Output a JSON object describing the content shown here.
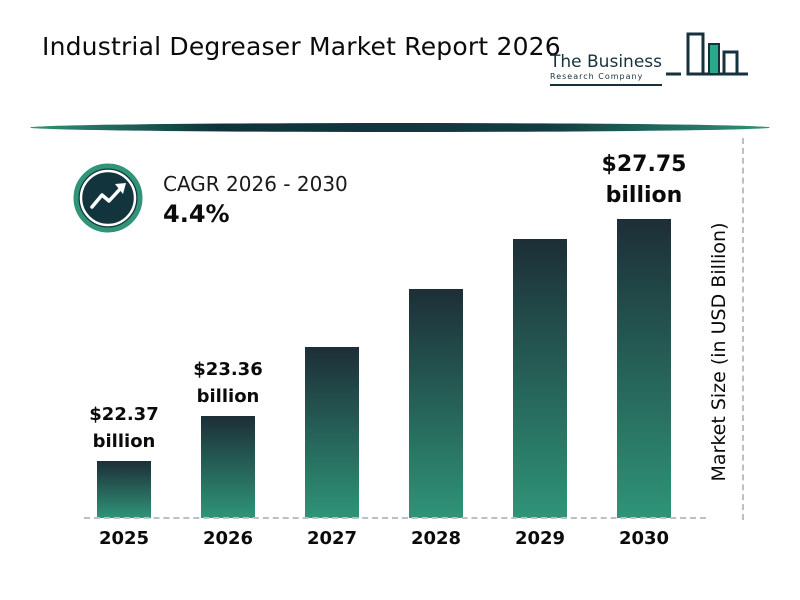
{
  "header": {
    "title": "Industrial Degreaser Market Report 2026",
    "logo": {
      "line1": "The Business",
      "line2": "Research Company"
    }
  },
  "cagr": {
    "label": "CAGR 2026 - 2030",
    "value": "4.4%"
  },
  "chart_data": {
    "type": "bar",
    "title": "Industrial Degreaser Market Report 2026",
    "categories": [
      "2025",
      "2026",
      "2027",
      "2028",
      "2029",
      "2030"
    ],
    "values": [
      22.37,
      23.36,
      24.9,
      26.2,
      27.3,
      27.75
    ],
    "values_estimated": [
      false,
      false,
      true,
      true,
      true,
      false
    ],
    "data_labels": [
      {
        "value": "$22.37",
        "unit": "billion",
        "size": "normal"
      },
      {
        "value": "$23.36",
        "unit": "billion",
        "size": "normal"
      },
      null,
      null,
      null,
      {
        "value": "$27.75",
        "unit": "billion",
        "size": "large"
      }
    ],
    "xlabel": "",
    "ylabel": "Market Size (in USD Billion)",
    "ylim": [
      21.1,
      28.2
    ],
    "grid": false,
    "legend": false,
    "bar_gradient_top": "#1d2e37",
    "bar_gradient_bottom": "#2f9478"
  },
  "colors": {
    "accent_teal": "#2f9478",
    "dark_teal": "#12343c",
    "dashed_line": "#b9c0c6",
    "logo_ink": "#16323c",
    "logo_fill": "#2aa887"
  }
}
